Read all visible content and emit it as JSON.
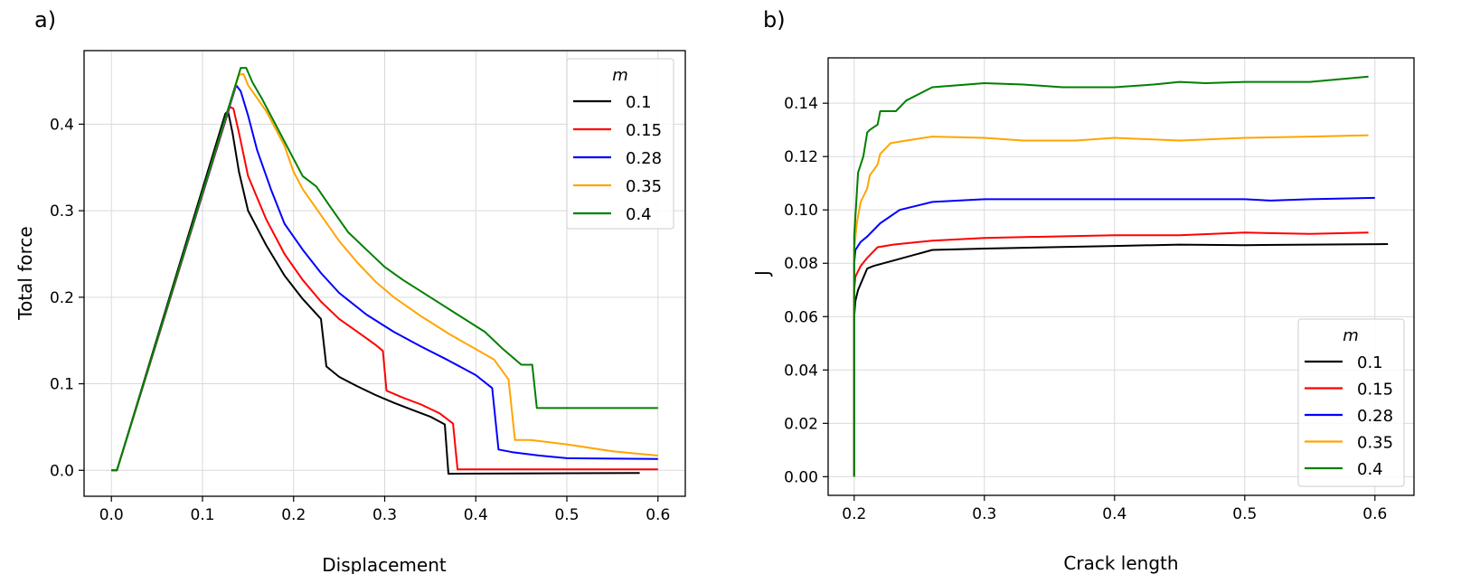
{
  "chart_data": [
    {
      "type": "line",
      "panel_label": "a)",
      "xlabel": "Displacement",
      "ylabel": "Total force",
      "xlim": [
        -0.03,
        0.63
      ],
      "ylim": [
        -0.03,
        0.485
      ],
      "xticks": [
        0.0,
        0.1,
        0.2,
        0.3,
        0.4,
        0.5,
        0.6
      ],
      "xtick_labels": [
        "0.0",
        "0.1",
        "0.2",
        "0.3",
        "0.4",
        "0.5",
        "0.6"
      ],
      "yticks": [
        0.0,
        0.1,
        0.2,
        0.3,
        0.4
      ],
      "ytick_labels": [
        "0.0",
        "0.1",
        "0.2",
        "0.3",
        "0.4"
      ],
      "grid": true,
      "legend": {
        "title": "m",
        "position": "top-right"
      },
      "series": [
        {
          "name": "0.1",
          "color": "#000000",
          "x": [
            0.0,
            0.006,
            0.125,
            0.128,
            0.133,
            0.14,
            0.15,
            0.17,
            0.19,
            0.21,
            0.23,
            0.236,
            0.25,
            0.27,
            0.29,
            0.31,
            0.33,
            0.35,
            0.366,
            0.37,
            0.58
          ],
          "y": [
            0.0,
            0.0,
            0.412,
            0.415,
            0.39,
            0.345,
            0.3,
            0.26,
            0.225,
            0.198,
            0.175,
            0.12,
            0.108,
            0.097,
            0.087,
            0.078,
            0.07,
            0.062,
            0.053,
            -0.004,
            -0.003
          ]
        },
        {
          "name": "0.15",
          "color": "#ff0000",
          "x": [
            0.0,
            0.006,
            0.13,
            0.134,
            0.14,
            0.15,
            0.17,
            0.19,
            0.21,
            0.23,
            0.25,
            0.27,
            0.29,
            0.298,
            0.302,
            0.32,
            0.34,
            0.36,
            0.375,
            0.38,
            0.6
          ],
          "y": [
            0.0,
            0.0,
            0.42,
            0.418,
            0.39,
            0.34,
            0.29,
            0.25,
            0.22,
            0.195,
            0.175,
            0.16,
            0.145,
            0.138,
            0.092,
            0.084,
            0.076,
            0.066,
            0.054,
            0.001,
            0.001
          ]
        },
        {
          "name": "0.28",
          "color": "#0000ff",
          "x": [
            0.0,
            0.006,
            0.137,
            0.142,
            0.15,
            0.16,
            0.175,
            0.19,
            0.21,
            0.23,
            0.25,
            0.28,
            0.31,
            0.34,
            0.37,
            0.4,
            0.418,
            0.425,
            0.44,
            0.47,
            0.5,
            0.6
          ],
          "y": [
            0.0,
            0.0,
            0.445,
            0.438,
            0.41,
            0.37,
            0.325,
            0.285,
            0.255,
            0.228,
            0.205,
            0.18,
            0.16,
            0.143,
            0.127,
            0.11,
            0.095,
            0.024,
            0.021,
            0.017,
            0.014,
            0.013
          ]
        },
        {
          "name": "0.35",
          "color": "#ffa500",
          "x": [
            0.0,
            0.006,
            0.14,
            0.145,
            0.15,
            0.17,
            0.19,
            0.2,
            0.21,
            0.23,
            0.25,
            0.27,
            0.29,
            0.31,
            0.34,
            0.37,
            0.4,
            0.42,
            0.436,
            0.443,
            0.46,
            0.5,
            0.55,
            0.6
          ],
          "y": [
            0.0,
            0.0,
            0.457,
            0.458,
            0.445,
            0.415,
            0.375,
            0.345,
            0.325,
            0.295,
            0.265,
            0.24,
            0.218,
            0.2,
            0.178,
            0.158,
            0.14,
            0.128,
            0.105,
            0.035,
            0.035,
            0.03,
            0.022,
            0.017
          ]
        },
        {
          "name": "0.4",
          "color": "#008000",
          "x": [
            0.0,
            0.006,
            0.142,
            0.148,
            0.155,
            0.165,
            0.18,
            0.2,
            0.21,
            0.225,
            0.24,
            0.26,
            0.28,
            0.3,
            0.32,
            0.35,
            0.38,
            0.41,
            0.43,
            0.45,
            0.462,
            0.467,
            0.6
          ],
          "y": [
            0.0,
            0.0,
            0.465,
            0.465,
            0.448,
            0.43,
            0.4,
            0.36,
            0.34,
            0.328,
            0.305,
            0.275,
            0.255,
            0.235,
            0.22,
            0.2,
            0.18,
            0.16,
            0.14,
            0.122,
            0.122,
            0.072,
            0.072
          ]
        }
      ]
    },
    {
      "type": "line",
      "panel_label": "b)",
      "xlabel": "Crack length",
      "ylabel": "J",
      "xlim": [
        0.18,
        0.63
      ],
      "ylim": [
        -0.007,
        0.157
      ],
      "xticks": [
        0.2,
        0.3,
        0.4,
        0.5,
        0.6
      ],
      "xtick_labels": [
        "0.2",
        "0.3",
        "0.4",
        "0.5",
        "0.6"
      ],
      "yticks": [
        0.0,
        0.02,
        0.04,
        0.06,
        0.08,
        0.1,
        0.12,
        0.14
      ],
      "ytick_labels": [
        "0.00",
        "0.02",
        "0.04",
        "0.06",
        "0.08",
        "0.10",
        "0.12",
        "0.14"
      ],
      "grid": true,
      "legend": {
        "title": "m",
        "position": "bottom-right"
      },
      "series": [
        {
          "name": "0.1",
          "color": "#000000",
          "x": [
            0.2,
            0.2,
            0.201,
            0.203,
            0.21,
            0.215,
            0.23,
            0.26,
            0.3,
            0.35,
            0.4,
            0.45,
            0.5,
            0.55,
            0.61
          ],
          "y": [
            0.0,
            0.06,
            0.066,
            0.07,
            0.078,
            0.079,
            0.081,
            0.085,
            0.0855,
            0.086,
            0.0865,
            0.087,
            0.0868,
            0.087,
            0.0872
          ]
        },
        {
          "name": "0.15",
          "color": "#ff0000",
          "x": [
            0.2,
            0.2,
            0.201,
            0.205,
            0.21,
            0.218,
            0.23,
            0.26,
            0.3,
            0.35,
            0.4,
            0.45,
            0.5,
            0.55,
            0.595
          ],
          "y": [
            0.0,
            0.07,
            0.075,
            0.079,
            0.082,
            0.086,
            0.087,
            0.0885,
            0.0895,
            0.09,
            0.0905,
            0.0905,
            0.0915,
            0.091,
            0.0915
          ]
        },
        {
          "name": "0.28",
          "color": "#0000ff",
          "x": [
            0.2,
            0.2,
            0.201,
            0.205,
            0.21,
            0.22,
            0.235,
            0.26,
            0.3,
            0.35,
            0.4,
            0.45,
            0.5,
            0.52,
            0.55,
            0.6
          ],
          "y": [
            0.0,
            0.08,
            0.085,
            0.088,
            0.09,
            0.095,
            0.1,
            0.103,
            0.104,
            0.104,
            0.104,
            0.104,
            0.104,
            0.1035,
            0.104,
            0.1045
          ]
        },
        {
          "name": "0.35",
          "color": "#ffa500",
          "x": [
            0.2,
            0.2,
            0.202,
            0.205,
            0.21,
            0.212,
            0.218,
            0.22,
            0.228,
            0.24,
            0.26,
            0.3,
            0.33,
            0.37,
            0.4,
            0.45,
            0.5,
            0.55,
            0.595
          ],
          "y": [
            0.0,
            0.085,
            0.095,
            0.103,
            0.108,
            0.113,
            0.117,
            0.121,
            0.125,
            0.126,
            0.1275,
            0.127,
            0.126,
            0.126,
            0.127,
            0.126,
            0.127,
            0.1275,
            0.128
          ]
        },
        {
          "name": "0.4",
          "color": "#008000",
          "x": [
            0.2,
            0.2,
            0.203,
            0.207,
            0.21,
            0.212,
            0.218,
            0.22,
            0.226,
            0.232,
            0.24,
            0.26,
            0.3,
            0.33,
            0.36,
            0.4,
            0.43,
            0.45,
            0.47,
            0.5,
            0.55,
            0.595
          ],
          "y": [
            0.0,
            0.09,
            0.114,
            0.12,
            0.129,
            0.13,
            0.132,
            0.137,
            0.137,
            0.137,
            0.141,
            0.146,
            0.1475,
            0.147,
            0.146,
            0.146,
            0.147,
            0.148,
            0.1475,
            0.148,
            0.148,
            0.15
          ]
        }
      ]
    }
  ]
}
